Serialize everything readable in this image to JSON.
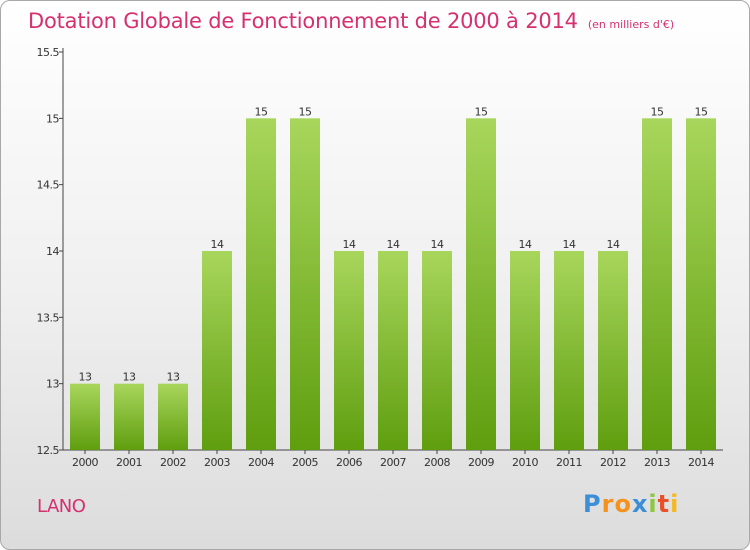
{
  "header": {
    "title": "Dotation Globale de Fonctionnement de 2000 à 2014",
    "subtitle": "(en milliers d'€)"
  },
  "footer": {
    "commune": "LANO",
    "brand": {
      "letters": [
        "P",
        "r",
        "o",
        "x",
        "i",
        "t",
        "i"
      ],
      "colors": [
        "#3c8ed6",
        "#f5921e",
        "#f5921e",
        "#3c8ed6",
        "#8ec63f",
        "#e8502a",
        "#f5b81e"
      ]
    }
  },
  "colors": {
    "bar_top": "#a8d65c",
    "bar_bottom": "#5f9e0f",
    "title": "#d6306f",
    "axis": "#444444"
  },
  "chart_data": {
    "type": "bar",
    "title": "Dotation Globale de Fonctionnement de 2000 à 2014",
    "subtitle": "(en milliers d'€)",
    "xlabel": "",
    "ylabel": "",
    "categories": [
      "2000",
      "2001",
      "2002",
      "2003",
      "2004",
      "2005",
      "2006",
      "2007",
      "2008",
      "2009",
      "2010",
      "2011",
      "2012",
      "2013",
      "2014"
    ],
    "values": [
      13,
      13,
      13,
      14,
      15,
      15,
      14,
      14,
      14,
      15,
      14,
      14,
      14,
      15,
      15
    ],
    "data_labels": [
      "13",
      "13",
      "13",
      "14",
      "15",
      "15",
      "14",
      "14",
      "14",
      "15",
      "14",
      "14",
      "14",
      "15",
      "15"
    ],
    "ylim": [
      12.5,
      15.5
    ],
    "yticks": [
      12.5,
      13,
      13.5,
      14,
      14.5,
      15,
      15.5
    ],
    "ytick_labels": [
      "12.5",
      "13",
      "13.5",
      "14",
      "14.5",
      "15",
      "15.5"
    ],
    "grid": false,
    "legend": "none"
  }
}
